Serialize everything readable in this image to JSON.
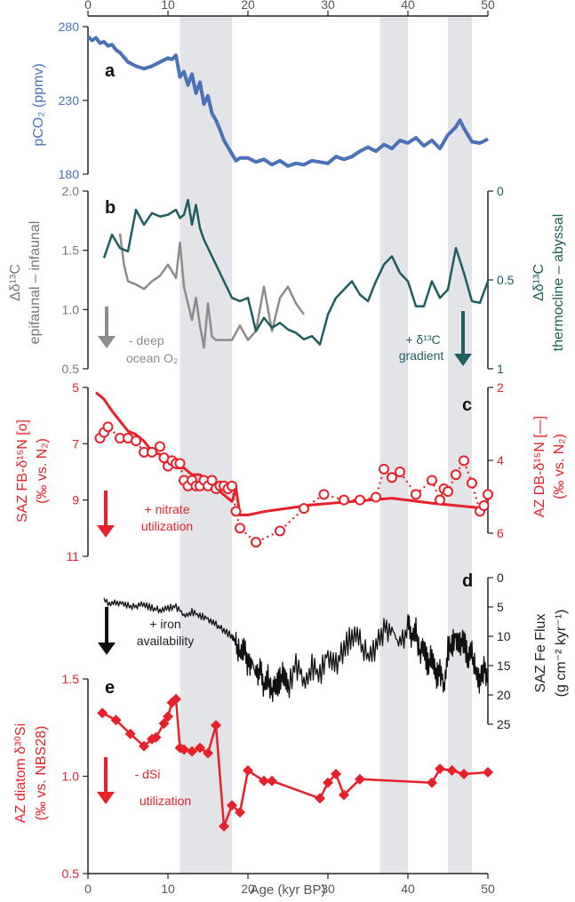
{
  "figure": {
    "xlabel": "Age (kyr BP)",
    "x_ticks": [
      "0",
      "10",
      "20",
      "30",
      "40",
      "50"
    ]
  },
  "colors": {
    "co2": "#4a72b8",
    "grey": "#8c8c8c",
    "teal": "#1e5e5e",
    "red": "#e8202a",
    "black": "#111111",
    "shade": "#e2e4e8"
  },
  "chart_data": [
    {
      "panel": "a",
      "type": "line",
      "ylabel": "pCO₂ (ppmv)",
      "ylim": [
        180,
        285
      ],
      "y_ticks": [
        "280",
        "230",
        "180"
      ],
      "shaded_intervals_kyr": [
        [
          11.5,
          18
        ],
        [
          36.5,
          40
        ],
        [
          45,
          48
        ]
      ],
      "series": [
        {
          "name": "pCO2",
          "x": [
            0,
            0.5,
            1,
            1.5,
            2,
            2.5,
            3,
            3.5,
            4,
            5,
            6,
            7,
            8,
            9,
            10,
            10.5,
            11,
            11.5,
            12,
            12.5,
            13,
            13.5,
            14,
            14.5,
            15,
            15.5,
            16,
            16.5,
            17,
            17.5,
            18,
            18.5,
            19,
            20,
            21,
            22,
            23,
            24,
            25,
            26,
            27,
            28,
            29,
            30,
            31,
            32,
            33,
            34,
            35,
            36,
            37,
            38,
            39,
            40,
            41,
            42,
            43,
            44,
            45,
            46,
            46.5,
            47,
            48,
            49,
            50
          ],
          "y": [
            282,
            279,
            281,
            277,
            278,
            275,
            276,
            272,
            270,
            263,
            260,
            258,
            260,
            263,
            266,
            265,
            268,
            252,
            256,
            246,
            254,
            240,
            248,
            232,
            238,
            225,
            220,
            213,
            205,
            200,
            195,
            190,
            192,
            192,
            189,
            191,
            187,
            190,
            186,
            188,
            187,
            190,
            189,
            188,
            193,
            191,
            193,
            197,
            200,
            197,
            202,
            199,
            205,
            203,
            207,
            201,
            205,
            199,
            209,
            215,
            220,
            214,
            204,
            203,
            206
          ]
        }
      ]
    },
    {
      "panel": "b",
      "type": "line",
      "ylabel_left": "Δδ¹³C epifaunal – infaunal",
      "ylabel_right": "Δδ¹³C thermocline – abyssal",
      "ylim_left": [
        0.5,
        2.0
      ],
      "ylim_right": [
        0,
        1
      ],
      "y_ticks_left": [
        "2.0",
        "1.5",
        "1.0",
        "0.5"
      ],
      "y_ticks_right": [
        "0",
        "0.5",
        "1"
      ],
      "annotations": [
        {
          "text": "- deep",
          "color": "grey"
        },
        {
          "text": "ocean O₂",
          "color": "grey"
        },
        {
          "text": "+ δ¹³C",
          "color": "teal"
        },
        {
          "text": "gradient",
          "color": "teal"
        }
      ],
      "series": [
        {
          "name": "epifaunal-infaunal",
          "axis": "left",
          "x": [
            4,
            4.5,
            5,
            6,
            7,
            8,
            9,
            10,
            11,
            11.5,
            12,
            12.5,
            13,
            13.5,
            14,
            14.5,
            15,
            15.5,
            16,
            17,
            18,
            19,
            20,
            21,
            22,
            23,
            24,
            25,
            26,
            27
          ],
          "y": [
            1.68,
            1.4,
            1.25,
            1.22,
            1.18,
            1.25,
            1.3,
            1.4,
            1.28,
            1.6,
            1.2,
            1.05,
            0.9,
            1.1,
            0.85,
            0.65,
            1.05,
            0.75,
            0.72,
            0.72,
            0.72,
            0.85,
            0.72,
            0.8,
            1.2,
            0.8,
            1.1,
            1.2,
            1.05,
            0.95
          ]
        },
        {
          "name": "thermocline-abyssal",
          "axis": "right",
          "x": [
            2,
            3,
            4,
            5,
            6,
            7,
            8,
            9,
            10,
            11,
            11.5,
            12,
            12.5,
            13,
            13.5,
            14,
            14.5,
            15,
            16,
            17,
            18,
            19,
            20,
            21,
            22,
            23,
            24,
            25,
            26,
            27,
            28,
            29,
            30,
            31,
            32,
            33,
            34,
            35,
            36,
            37,
            38,
            39,
            40,
            41,
            42,
            43,
            44,
            45,
            46,
            47,
            48,
            49,
            50
          ],
          "y": [
            0.36,
            0.22,
            0.3,
            0.32,
            0.07,
            0.16,
            0.09,
            0.11,
            0.1,
            0.07,
            0.12,
            0.1,
            0.01,
            0.16,
            0.04,
            0.18,
            0.25,
            0.3,
            0.4,
            0.5,
            0.6,
            0.62,
            0.6,
            0.8,
            0.72,
            0.78,
            0.75,
            0.79,
            0.81,
            0.85,
            0.83,
            0.88,
            0.7,
            0.6,
            0.55,
            0.5,
            0.58,
            0.62,
            0.5,
            0.4,
            0.35,
            0.45,
            0.5,
            0.65,
            0.65,
            0.5,
            0.6,
            0.55,
            0.3,
            0.45,
            0.62,
            0.63,
            0.5
          ]
        }
      ]
    },
    {
      "panel": "c",
      "type": "line",
      "ylabel_left": "SAZ FB-δ¹⁵N [o] (‰ vs. N₂)",
      "ylabel_right": "AZ DB-δ¹⁵N [—] (‰ vs. N₂)",
      "ylim_left": [
        11,
        5
      ],
      "ylim_right": [
        6.2,
        2
      ],
      "y_ticks_left": [
        "5",
        "7",
        "9",
        "11"
      ],
      "y_ticks_right": [
        "2",
        "4",
        "6"
      ],
      "annotations": [
        {
          "text": "+ nitrate",
          "color": "red"
        },
        {
          "text": "utilization",
          "color": "red"
        }
      ],
      "series": [
        {
          "name": "SAZ FB-δ15N",
          "axis": "left",
          "marker": "circle",
          "dashed": true,
          "x": [
            1.5,
            2,
            2.5,
            4,
            5,
            6,
            7,
            8,
            9,
            9.5,
            10,
            10.5,
            11,
            11.5,
            12,
            12.5,
            13,
            13.5,
            14,
            14.5,
            15,
            15.5,
            16,
            16.5,
            17,
            17.5,
            18,
            18.5,
            19,
            21,
            24,
            27,
            29.5,
            32,
            34,
            36,
            37,
            38,
            39,
            41,
            43,
            44,
            44.5,
            45,
            46,
            47,
            48,
            49,
            49.5,
            50
          ],
          "y": [
            6.8,
            6.6,
            6.4,
            6.8,
            6.8,
            6.9,
            7.3,
            7.3,
            7.1,
            7.5,
            7.8,
            7.6,
            7.7,
            7.7,
            8.3,
            8.5,
            8.3,
            8.5,
            8.5,
            8.3,
            8.5,
            8.3,
            8.6,
            8.5,
            8.5,
            8.6,
            8.5,
            9.4,
            10.0,
            10.5,
            10.1,
            9.3,
            8.8,
            9.0,
            9.0,
            8.9,
            7.9,
            8.2,
            8.0,
            8.8,
            8.3,
            9.0,
            8.6,
            8.7,
            8.1,
            7.6,
            8.4,
            9.4,
            9.2,
            8.8
          ]
        },
        {
          "name": "AZ DB-δ15N",
          "axis": "right",
          "x": [
            1,
            1.5,
            2,
            3,
            4,
            5,
            6,
            7,
            8,
            9,
            10,
            11,
            12,
            13,
            14,
            15,
            16,
            17,
            18,
            18.5,
            19,
            20,
            22,
            25,
            28,
            33,
            38,
            43,
            49.5
          ],
          "y": [
            2.15,
            2.25,
            2.35,
            2.7,
            3.0,
            3.3,
            3.4,
            3.6,
            3.9,
            4.0,
            4.2,
            4.4,
            4.4,
            4.6,
            4.6,
            4.8,
            5.0,
            5.2,
            5.4,
            5.0,
            5.8,
            5.8,
            5.7,
            5.6,
            5.5,
            5.4,
            5.3,
            5.45,
            5.6
          ]
        }
      ]
    },
    {
      "panel": "d",
      "type": "line",
      "ylabel": "SAZ Fe Flux (g cm⁻² kyr⁻¹)",
      "ylim": [
        25,
        0
      ],
      "y_ticks": [
        "0",
        "5",
        "10",
        "15",
        "20",
        "25"
      ],
      "annotations": [
        {
          "text": "+ iron",
          "color": "black"
        },
        {
          "text": "availability",
          "color": "black"
        }
      ],
      "series": [
        {
          "name": "SAZ Fe flux",
          "axis": "right",
          "x": [
            2,
            3,
            4,
            5,
            6,
            7,
            8,
            9,
            10,
            11,
            12,
            13,
            14,
            15,
            16,
            17,
            18,
            18.5,
            19,
            19.5,
            20,
            20.5,
            21,
            21.5,
            22,
            22.5,
            23,
            23.5,
            24,
            24.5,
            25,
            26,
            27,
            28,
            29,
            30,
            31,
            32,
            33,
            34,
            35,
            36,
            37,
            38,
            39,
            40,
            40.5,
            41,
            41.5,
            42,
            42.5,
            43,
            43.5,
            44,
            44.5,
            45,
            45.5,
            46,
            46.5,
            47,
            47.5,
            48,
            48.5,
            49,
            49.5,
            50
          ],
          "y": [
            4.0,
            4.5,
            4.2,
            4.8,
            5.0,
            4.6,
            5.2,
            5.5,
            5.2,
            5.0,
            6.2,
            5.8,
            6.5,
            7.0,
            8.0,
            9.0,
            10.0,
            11.5,
            13.0,
            12.0,
            15.0,
            14.0,
            17.0,
            15.5,
            18.5,
            17.0,
            20.0,
            18.5,
            17.5,
            16.0,
            19.0,
            15.0,
            17.0,
            15.0,
            16.5,
            13.0,
            15.0,
            12.0,
            10.0,
            11.0,
            13.5,
            12.0,
            9.0,
            8.5,
            12.0,
            8.0,
            10.0,
            9.0,
            13.5,
            12.0,
            15.0,
            13.0,
            17.0,
            16.0,
            18.0,
            12.0,
            11.5,
            10.0,
            11.5,
            10.5,
            14.0,
            13.0,
            16.0,
            18.0,
            15.5,
            17.0
          ]
        }
      ]
    },
    {
      "panel": "e",
      "type": "line",
      "ylabel": "AZ diatom δ³⁰Si (‰ vs. NBS28)",
      "ylim": [
        0.5,
        1.5
      ],
      "y_ticks": [
        "1.5",
        "1.0",
        "0.5"
      ],
      "annotations": [
        {
          "text": "- dSi",
          "color": "red"
        },
        {
          "text": "utilization",
          "color": "red"
        }
      ],
      "series": [
        {
          "name": "AZ diatom δ30Si",
          "marker": "diamond",
          "x": [
            1.8,
            3.5,
            5.3,
            7,
            8,
            8.5,
            9.5,
            10,
            10.5,
            11,
            11.5,
            12,
            13,
            14,
            15,
            16,
            17,
            18,
            19,
            20,
            22,
            23,
            29,
            30,
            31,
            32,
            34,
            43,
            44,
            45.5,
            47,
            50
          ],
          "y": [
            1.34,
            1.3,
            1.22,
            1.15,
            1.19,
            1.2,
            1.28,
            1.32,
            1.4,
            1.42,
            1.14,
            1.13,
            1.12,
            1.14,
            1.11,
            1.27,
            0.69,
            0.81,
            0.77,
            1.01,
            0.95,
            0.95,
            0.85,
            0.94,
            0.99,
            0.87,
            0.96,
            0.94,
            1.02,
            1.01,
            0.99,
            1.0
          ]
        }
      ]
    }
  ]
}
